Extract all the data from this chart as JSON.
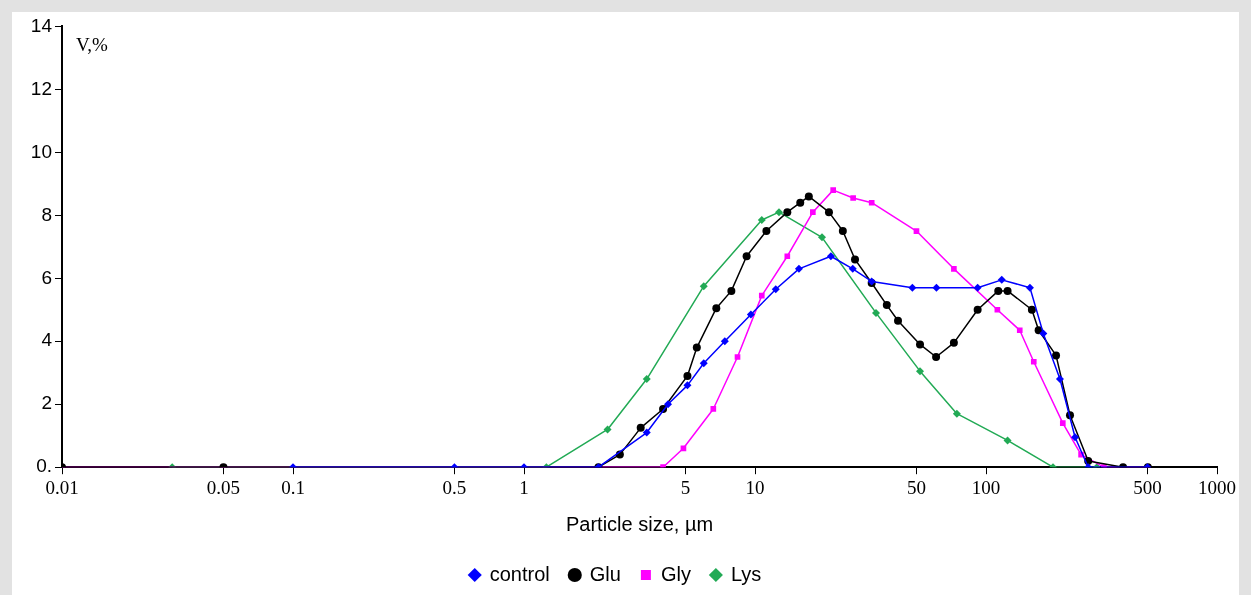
{
  "chart_data": {
    "type": "line",
    "xlabel": "Particle size, µm",
    "ylabel": "V,%",
    "log": "x",
    "grid": false,
    "legend": "bottom",
    "xlim": [
      0.01,
      1000
    ],
    "xticks": [
      0.01,
      0.05,
      0.1,
      0.5,
      1,
      5,
      10,
      50,
      100,
      500,
      1000
    ],
    "ylim": [
      0,
      14
    ],
    "yticks": [
      {
        "value": 0,
        "label": "0."
      },
      2,
      4,
      6,
      8,
      10,
      12,
      14
    ],
    "series": [
      {
        "name": "control",
        "color": "#0000ff",
        "marker": "diamond",
        "x": [
          0.1,
          0.5,
          1,
          2.1,
          3.4,
          4.2,
          5.1,
          6,
          7.4,
          9.6,
          12.3,
          15.5,
          21.3,
          26.5,
          32,
          48,
          61,
          92,
          117,
          155,
          177,
          209,
          243,
          277,
          500
        ],
        "values": [
          0,
          0,
          0,
          0,
          1.1,
          2,
          2.6,
          3.3,
          4,
          4.85,
          5.65,
          6.3,
          6.7,
          6.3,
          5.9,
          5.7,
          5.7,
          5.7,
          5.95,
          5.7,
          4.25,
          2.8,
          0.95,
          0,
          0
        ]
      },
      {
        "name": "Glu",
        "color": "#000000",
        "marker": "circle",
        "x": [
          0.01,
          0.05,
          2.1,
          2.6,
          3.2,
          4,
          5.1,
          5.6,
          6.8,
          7.9,
          9.2,
          11.2,
          13.8,
          15.7,
          17.1,
          20.9,
          24,
          27.1,
          32,
          37.2,
          41.6,
          51.8,
          60.8,
          72.6,
          92,
          113,
          124,
          158,
          169,
          201,
          231,
          277,
          392,
          502
        ],
        "values": [
          0,
          0,
          0,
          0.4,
          1.25,
          1.85,
          2.9,
          3.8,
          5.05,
          5.6,
          6.7,
          7.5,
          8.1,
          8.4,
          8.6,
          8.1,
          7.5,
          6.6,
          5.85,
          5.15,
          4.65,
          3.9,
          3.5,
          3.95,
          5,
          5.6,
          5.6,
          5,
          4.35,
          3.55,
          1.65,
          0.2,
          0,
          0
        ]
      },
      {
        "name": "Gly",
        "color": "#ff00ff",
        "marker": "square",
        "x": [
          0.01,
          0.05,
          4,
          4.9,
          6.6,
          8.4,
          10.7,
          13.8,
          17.8,
          21.8,
          26.6,
          32,
          50,
          72.6,
          112,
          140,
          161,
          215,
          258,
          324,
          502
        ],
        "values": [
          0,
          0,
          0,
          0.6,
          1.85,
          3.5,
          5.45,
          6.7,
          8.1,
          8.8,
          8.55,
          8.4,
          7.5,
          6.3,
          5,
          4.35,
          3.35,
          1.4,
          0.4,
          0,
          0
        ]
      },
      {
        "name": "Lys",
        "color": "#22aa55",
        "marker": "diamond",
        "x": [
          0.03,
          1.25,
          2.3,
          3.4,
          6,
          10.7,
          12.7,
          19.5,
          33.4,
          51.8,
          74.8,
          124,
          195,
          302
        ],
        "values": [
          0,
          0,
          1.2,
          2.8,
          5.75,
          7.85,
          8.1,
          7.3,
          4.9,
          3.05,
          1.7,
          0.85,
          0,
          0
        ]
      }
    ]
  }
}
